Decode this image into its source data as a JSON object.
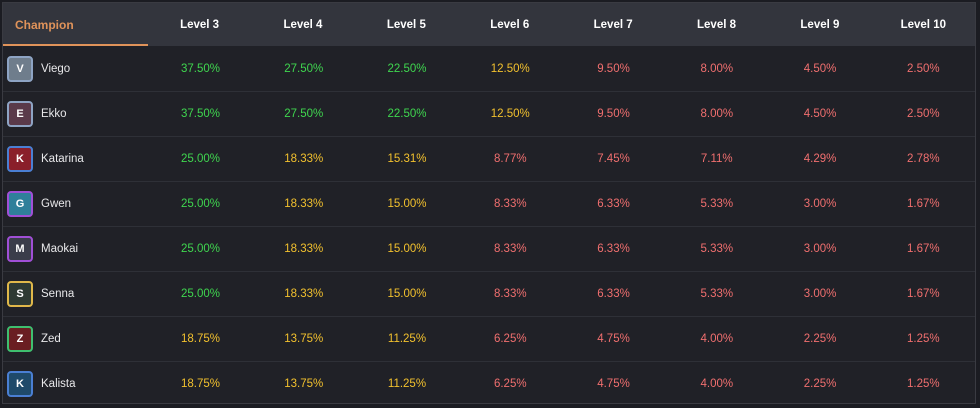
{
  "header": {
    "champion_label": "Champion",
    "levels": [
      "Level 3",
      "Level 4",
      "Level 5",
      "Level 6",
      "Level 7",
      "Level 8",
      "Level 9",
      "Level 10"
    ]
  },
  "colors": {
    "green": "#3fd64f",
    "yellow": "#f2c12e",
    "red": "#f06f6f",
    "accent": "#e0935a"
  },
  "rows": [
    {
      "name": "Viego",
      "portrait": {
        "bg": "#6f7d8c",
        "border": "#8ea4c4",
        "glyph": "V"
      },
      "values": [
        "37.50%",
        "27.50%",
        "22.50%",
        "12.50%",
        "9.50%",
        "8.00%",
        "4.50%",
        "2.50%"
      ],
      "tiers": [
        "green",
        "green",
        "green",
        "yellow",
        "red",
        "red",
        "red",
        "red"
      ]
    },
    {
      "name": "Ekko",
      "portrait": {
        "bg": "#5a3a4a",
        "border": "#8ea4c4",
        "glyph": "E"
      },
      "values": [
        "37.50%",
        "27.50%",
        "22.50%",
        "12.50%",
        "9.50%",
        "8.00%",
        "4.50%",
        "2.50%"
      ],
      "tiers": [
        "green",
        "green",
        "green",
        "yellow",
        "red",
        "red",
        "red",
        "red"
      ]
    },
    {
      "name": "Katarina",
      "portrait": {
        "bg": "#8a1f2a",
        "border": "#4a7fd3",
        "glyph": "K"
      },
      "values": [
        "25.00%",
        "18.33%",
        "15.31%",
        "8.77%",
        "7.45%",
        "7.11%",
        "4.29%",
        "2.78%"
      ],
      "tiers": [
        "green",
        "yellow",
        "yellow",
        "red",
        "red",
        "red",
        "red",
        "red"
      ]
    },
    {
      "name": "Gwen",
      "portrait": {
        "bg": "#2f7f9a",
        "border": "#a04fd6",
        "glyph": "G"
      },
      "values": [
        "25.00%",
        "18.33%",
        "15.00%",
        "8.33%",
        "6.33%",
        "5.33%",
        "3.00%",
        "1.67%"
      ],
      "tiers": [
        "green",
        "yellow",
        "yellow",
        "red",
        "red",
        "red",
        "red",
        "red"
      ]
    },
    {
      "name": "Maokai",
      "portrait": {
        "bg": "#3a3d4a",
        "border": "#a04fd6",
        "glyph": "M"
      },
      "values": [
        "25.00%",
        "18.33%",
        "15.00%",
        "8.33%",
        "6.33%",
        "5.33%",
        "3.00%",
        "1.67%"
      ],
      "tiers": [
        "green",
        "yellow",
        "yellow",
        "red",
        "red",
        "red",
        "red",
        "red"
      ]
    },
    {
      "name": "Senna",
      "portrait": {
        "bg": "#2e3a33",
        "border": "#e0b84a",
        "glyph": "S"
      },
      "values": [
        "25.00%",
        "18.33%",
        "15.00%",
        "8.33%",
        "6.33%",
        "5.33%",
        "3.00%",
        "1.67%"
      ],
      "tiers": [
        "green",
        "yellow",
        "yellow",
        "red",
        "red",
        "red",
        "red",
        "red"
      ]
    },
    {
      "name": "Zed",
      "portrait": {
        "bg": "#6a1e22",
        "border": "#3fbf6f",
        "glyph": "Z"
      },
      "values": [
        "18.75%",
        "13.75%",
        "11.25%",
        "6.25%",
        "4.75%",
        "4.00%",
        "2.25%",
        "1.25%"
      ],
      "tiers": [
        "yellow",
        "yellow",
        "yellow",
        "red",
        "red",
        "red",
        "red",
        "red"
      ]
    },
    {
      "name": "Kalista",
      "portrait": {
        "bg": "#1f4a6a",
        "border": "#4a7fd3",
        "glyph": "K"
      },
      "values": [
        "18.75%",
        "13.75%",
        "11.25%",
        "6.25%",
        "4.75%",
        "4.00%",
        "2.25%",
        "1.25%"
      ],
      "tiers": [
        "yellow",
        "yellow",
        "yellow",
        "red",
        "red",
        "red",
        "red",
        "red"
      ]
    }
  ]
}
